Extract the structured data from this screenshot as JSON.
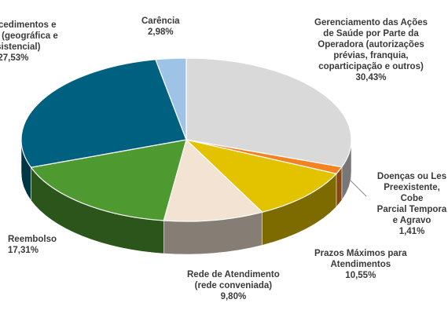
{
  "chart_data": {
    "type": "pie",
    "categories": [
      "Gerenciamento das Ações\nde Saúde por Parte da\nOperadora (autorizações\nprévias, franquia,\ncoparticipação e outros)",
      "Doenças ou Les\nPreexistente, Cobe\nParcial Tempora\ne Agravo",
      "Prazos Máximos para\nAtendimentos",
      "Rede de Atendimento\n(rede conveniada)",
      "Reembolso",
      "de Procedimentos e\nerturas (geográfica e\nassistencial)",
      "Carência"
    ],
    "values": [
      30.43,
      1.41,
      10.55,
      9.8,
      17.31,
      27.53,
      2.98
    ],
    "value_labels": [
      "30,43%",
      "1,41%",
      "10,55%",
      "9,80%",
      "17,31%",
      "27,53%",
      "2,98%"
    ],
    "colors": [
      "#d9d9d9",
      "#f58220",
      "#e3c200",
      "#f3e3d3",
      "#4f9a30",
      "#00607f",
      "#9dc3e6"
    ]
  }
}
